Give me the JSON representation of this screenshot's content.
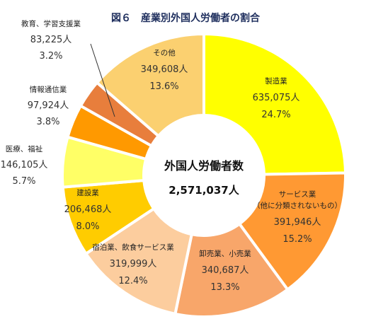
{
  "chart_data": {
    "type": "pie",
    "title": "図６　産業別外国人労働者の割合",
    "center_label": "外国人労働者数",
    "center_value": "2,571,037人",
    "slices": [
      {
        "name": "製造業",
        "value": "635,075人",
        "count": 635075,
        "percent": "24.7%",
        "share": 24.7,
        "color": "#ffff00"
      },
      {
        "name": "サービス業",
        "name_line2": "（他に分類されないもの）",
        "value": "391,946人",
        "count": 391946,
        "percent": "15.2%",
        "share": 15.2,
        "color": "#ff9933"
      },
      {
        "name": "卸売業、小売業",
        "value": "340,687人",
        "count": 340687,
        "percent": "13.3%",
        "share": 13.3,
        "color": "#f8a66a"
      },
      {
        "name": "宿泊業、飲食サービス業",
        "value": "319,999人",
        "count": 319999,
        "percent": "12.4%",
        "share": 12.4,
        "color": "#fccd9e"
      },
      {
        "name": "建設業",
        "value": "206,468人",
        "count": 206468,
        "percent": "8.0%",
        "share": 8.0,
        "color": "#ffcc00"
      },
      {
        "name": "医療、福祉",
        "value": "146,105人",
        "count": 146105,
        "percent": "5.7%",
        "share": 5.7,
        "color": "#ffff66"
      },
      {
        "name": "情報通信業",
        "value": "97,924人",
        "count": 97924,
        "percent": "3.8%",
        "share": 3.8,
        "color": "#ff9900"
      },
      {
        "name": "教育、学習支援業",
        "value": "83,225人",
        "count": 83225,
        "percent": "3.2%",
        "share": 3.2,
        "color": "#e87e3c"
      },
      {
        "name": "その他",
        "value": "349,608人",
        "count": 349608,
        "percent": "13.6%",
        "share": 13.6,
        "color": "#fbd070"
      }
    ]
  }
}
